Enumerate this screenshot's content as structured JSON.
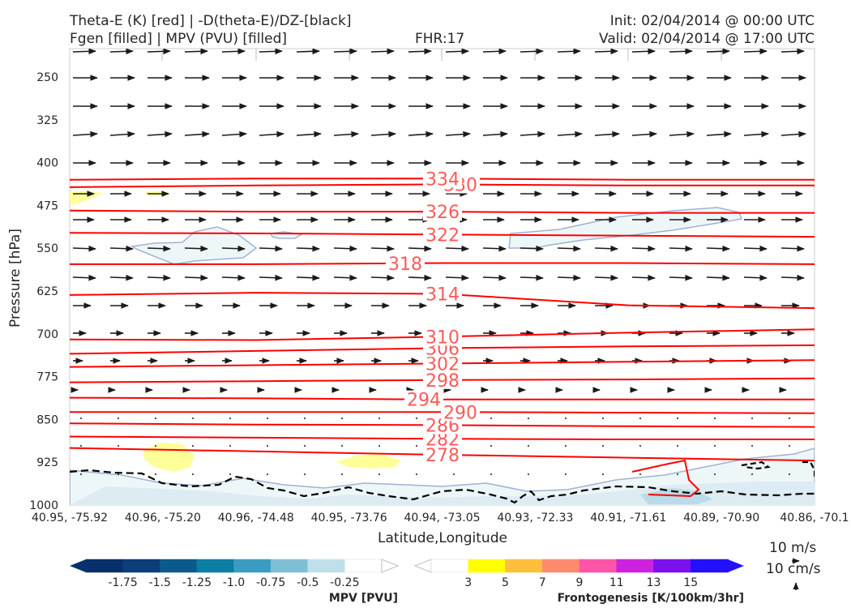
{
  "header": {
    "title_line1": "Theta-E (K) [red] | -D(theta-E)/DZ-[black]",
    "title_line2": "Fgen [filled] | MPV (PVU) [filled]",
    "fhr": "FHR:17",
    "init": "Init: 02/04/2014 @ 00:00 UTC",
    "valid": "Valid: 02/04/2014 @ 17:00 UTC"
  },
  "axes": {
    "ylabel": "Pressure [hPa]",
    "xlabel": "Latitude,Longitude",
    "yticks": [
      "250",
      "325",
      "400",
      "475",
      "550",
      "625",
      "700",
      "775",
      "850",
      "925",
      "1000"
    ],
    "xticks": [
      "40.95, -75.92",
      "40.96, -75.20",
      "40.96, -74.48",
      "40.95, -73.76",
      "40.94, -73.05",
      "40.93, -72.33",
      "40.91, -71.61",
      "40.89, -70.90",
      "40.86, -70.1"
    ]
  },
  "chart_data": {
    "type": "cross-section",
    "title": "Theta-E (K) [red] | -D(theta-E)/DZ-[black] Fgen [filled] | MPV (PVU) [filled]",
    "xlabel": "Latitude,Longitude",
    "ylabel": "Pressure [hPa]",
    "ylim": [
      1000,
      200
    ],
    "y_scale": "inverted",
    "theta_e_contours": [
      {
        "level": 278,
        "pressure": [
          900,
          906,
          912,
          917,
          922
        ],
        "color": "#ff0000"
      },
      {
        "level": 282,
        "pressure": [
          880,
          882,
          884,
          885,
          885
        ],
        "color": "#ff0000"
      },
      {
        "level": 286,
        "pressure": [
          857,
          859,
          860,
          862,
          863
        ],
        "color": "#ff0000"
      },
      {
        "level": 290,
        "pressure": [
          837,
          837,
          837,
          838,
          839
        ],
        "color": "#ff0000"
      },
      {
        "level": 294,
        "pressure": [
          812,
          813,
          815,
          815,
          815
        ],
        "color": "#ff0000"
      },
      {
        "level": 298,
        "pressure": [
          785,
          783,
          781,
          780,
          778
        ],
        "color": "#ff0000"
      },
      {
        "level": 302,
        "pressure": [
          758,
          755,
          752,
          749,
          746
        ],
        "color": "#ff0000"
      },
      {
        "level": 306,
        "pressure": [
          735,
          730,
          725,
          722,
          720
        ],
        "color": "#ff0000"
      },
      {
        "level": 310,
        "pressure": [
          710,
          711,
          705,
          698,
          692
        ],
        "color": "#ff0000"
      },
      {
        "level": 314,
        "pressure": [
          632,
          628,
          630,
          650,
          655
        ],
        "color": "#ff0000"
      },
      {
        "level": 318,
        "pressure": [
          578,
          578,
          576,
          576,
          578
        ],
        "color": "#ff0000"
      },
      {
        "level": 322,
        "pressure": [
          523,
          524,
          526,
          528,
          530
        ],
        "color": "#ff0000"
      },
      {
        "level": 326,
        "pressure": [
          484,
          486,
          486,
          488,
          488
        ],
        "color": "#ff0000"
      },
      {
        "level": 330,
        "pressure": [
          443,
          440,
          438,
          440,
          440
        ],
        "color": "#ff0000"
      },
      {
        "level": 334,
        "pressure": [
          430,
          428,
          428,
          430,
          430
        ],
        "color": "#ff0000"
      }
    ],
    "colorbars": [
      {
        "title": "MPV [PVU]",
        "ticks": [
          "-1.75",
          "-1.5",
          "-1.25",
          "-1.0",
          "-0.75",
          "-0.5",
          "-0.25"
        ],
        "colors": [
          "#08306b",
          "#0b3e7a",
          "#0b5a8c",
          "#0a7ea3",
          "#3a9cc0",
          "#7fbfd6",
          "#bfe0ea",
          "#ffffff"
        ]
      },
      {
        "title": "Frontogenesis [K/100km/3hr]",
        "ticks": [
          "3",
          "5",
          "7",
          "9",
          "11",
          "13",
          "15"
        ],
        "colors": [
          "#ffffff",
          "#ffff00",
          "#ffbe3c",
          "#ff8a6e",
          "#ff55a8",
          "#cc22dd",
          "#7a11ee",
          "#2211ff"
        ]
      }
    ],
    "wind_reference": [
      "10 m/s",
      "10 cm/s"
    ]
  }
}
